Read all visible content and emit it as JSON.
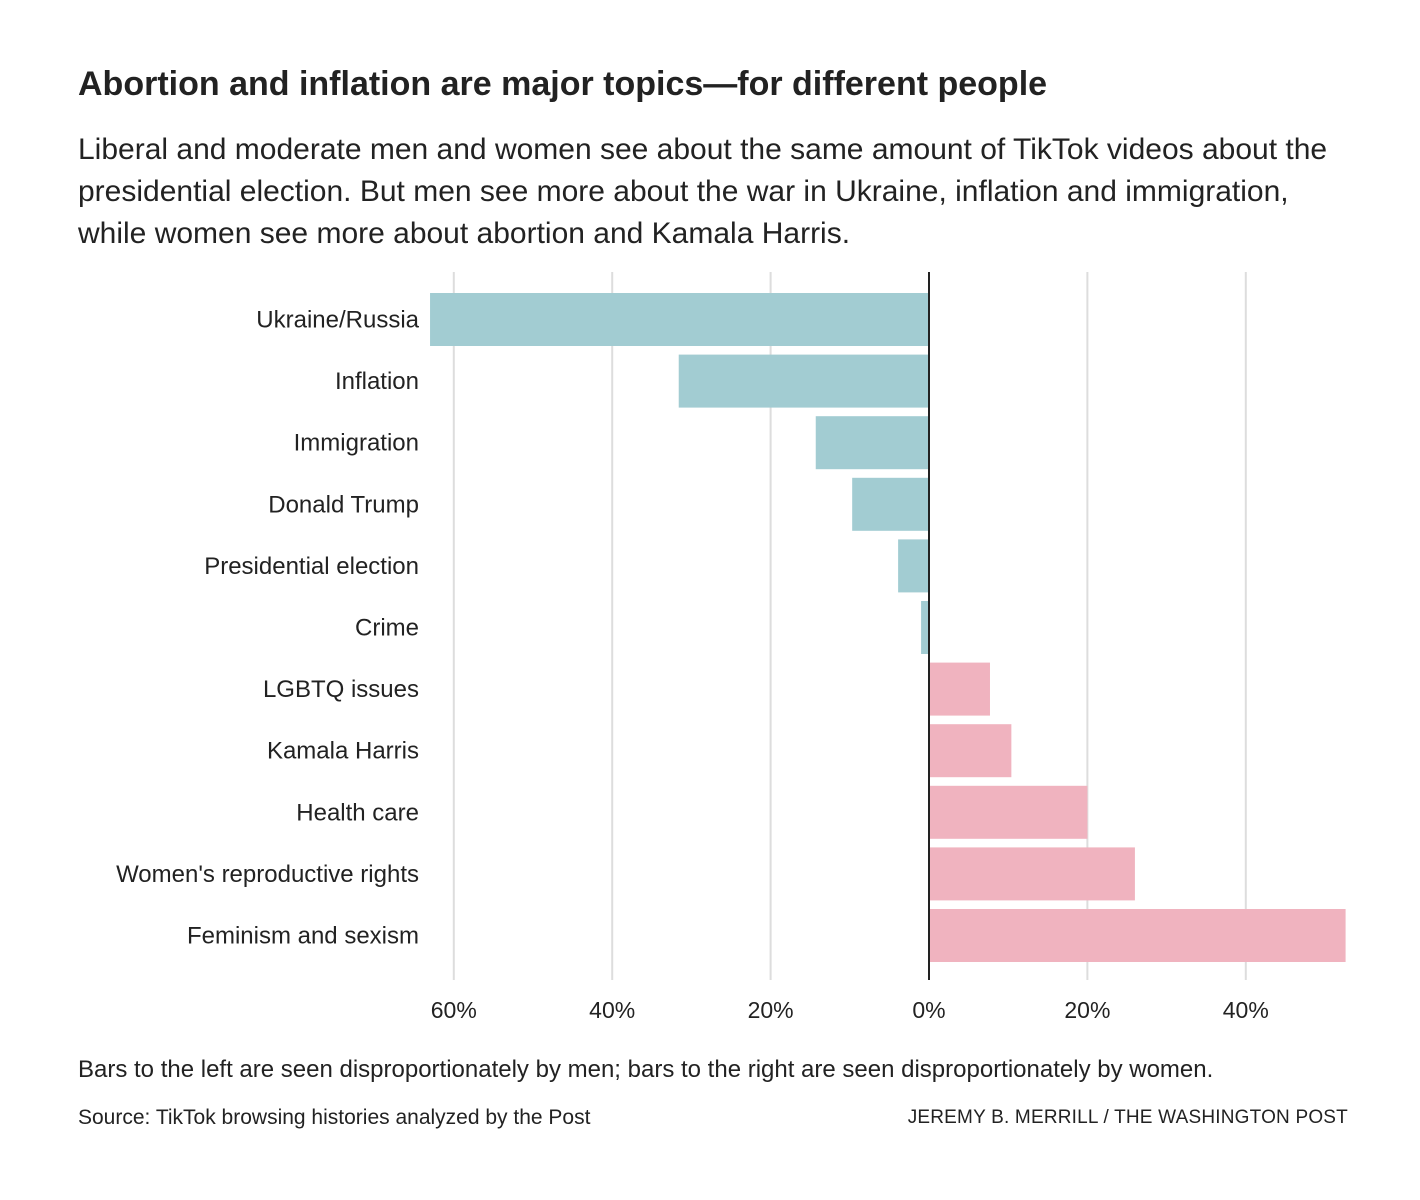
{
  "header": {
    "title": "Abortion and inflation are major topics—for different people",
    "subtitle": "Liberal and moderate men and women see about the same amount of TikTok videos about the presidential election. But men see more about the war in Ukraine, inflation and immigration, while women see more about abortion and Kamala Harris."
  },
  "footer": {
    "note": "Bars to the left are seen disproportionately by men; bars to the right are seen disproportionately by women.",
    "source": "Source: TikTok browsing histories analyzed by the Post",
    "credit": "JEREMY B. MERRILL / THE WASHINGTON POST"
  },
  "colors": {
    "men": "#a2ccd2",
    "women": "#f0b3bf",
    "gridline": "#dddddd",
    "zero_line": "#222222",
    "text": "#222222"
  },
  "chart_data": {
    "type": "bar",
    "orientation": "horizontal",
    "title": "Abortion and inflation are major topics—for different people",
    "xlabel": "",
    "ylabel": "",
    "xlim": [
      -60,
      50
    ],
    "categories": [
      "Ukraine/Russia",
      "Inflation",
      "Immigration",
      "Donald Trump",
      "Presidential election",
      "Crime",
      "LGBTQ issues",
      "Kamala Harris",
      "Health care",
      "Women's reproductive rights",
      "Feminism and sexism"
    ],
    "values": [
      -63,
      -31.6,
      -14.3,
      -9.7,
      -3.9,
      -1,
      7.7,
      10.4,
      20,
      26,
      52.6
    ],
    "x_ticks": [
      {
        "value": -60,
        "label": "60%"
      },
      {
        "value": -40,
        "label": "40%"
      },
      {
        "value": -20,
        "label": "20%"
      },
      {
        "value": 0,
        "label": "0%"
      },
      {
        "value": 20,
        "label": "20%"
      },
      {
        "value": 40,
        "label": "40%"
      }
    ],
    "grid": true,
    "legend": "none",
    "series_meaning": {
      "negative": "Seen disproportionately by men",
      "positive": "Seen disproportionately by women"
    }
  }
}
